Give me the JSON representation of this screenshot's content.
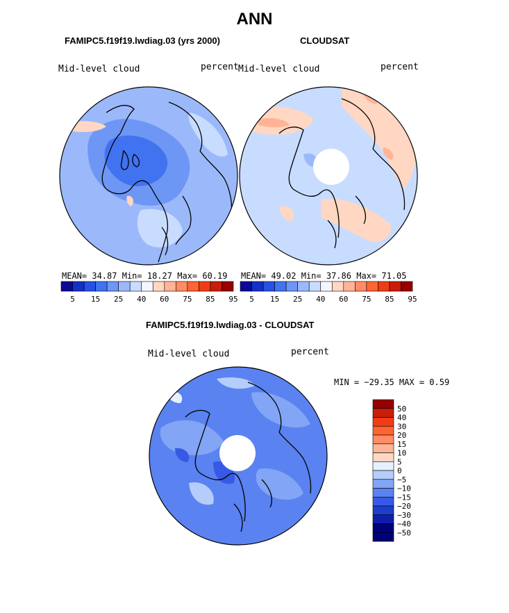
{
  "chart_data": [
    {
      "type": "heatmap",
      "projection": "north-polar-stereographic",
      "season": "ANN",
      "title": "FAMIPC5.f19f19.lwdiag.03 (yrs 2000)",
      "variable_label": "Mid-level cloud",
      "units": "percent",
      "stats": {
        "mean_label": "MEAN=",
        "mean": "34.87",
        "min_label": "Min=",
        "min": "18.27",
        "max_label": "Max=",
        "max": "60.19"
      },
      "colorbar": {
        "ticks": [
          "5",
          "15",
          "25",
          "40",
          "60",
          "75",
          "85",
          "95"
        ]
      }
    },
    {
      "type": "heatmap",
      "projection": "north-polar-stereographic",
      "title": "CLOUDSAT",
      "variable_label": "Mid-level cloud",
      "units": "percent",
      "stats": {
        "mean_label": "MEAN=",
        "mean": "49.02",
        "min_label": "Min=",
        "min": "37.86",
        "max_label": "Max=",
        "max": "71.05"
      },
      "colorbar": {
        "ticks": [
          "5",
          "15",
          "25",
          "40",
          "60",
          "75",
          "85",
          "95"
        ]
      }
    },
    {
      "type": "heatmap",
      "projection": "north-polar-stereographic",
      "title": "FAMIPC5.f19f19.lwdiag.03 - CLOUDSAT",
      "variable_label": "Mid-level cloud",
      "units": "percent",
      "stats_text": "MIN = −29.35 MAX =    0.59",
      "colorbar": {
        "levels": [
          "50",
          "40",
          "30",
          "20",
          "15",
          "10",
          "5",
          "0",
          "−5",
          "−10",
          "−15",
          "−20",
          "−30",
          "−40",
          "−50"
        ]
      }
    }
  ],
  "page": {
    "season_title": "ANN"
  },
  "colors": {
    "seq": [
      "#0a0a96",
      "#1430c8",
      "#2850e6",
      "#4173f0",
      "#6e96f5",
      "#9bb9fa",
      "#c8dcff",
      "#f5f5ff",
      "#ffd7c3",
      "#ffb496",
      "#ff8c64",
      "#ff6432",
      "#f03c14",
      "#c81e0a",
      "#960000"
    ],
    "diff": [
      "#960000",
      "#c81e0a",
      "#f03c14",
      "#ff6432",
      "#ff8c64",
      "#ffb496",
      "#ffd7c3",
      "#e6f0ff",
      "#b4cdfa",
      "#82a5f5",
      "#5a82f0",
      "#375ae6",
      "#1e3ccd",
      "#0f1eaa",
      "#000078"
    ]
  }
}
